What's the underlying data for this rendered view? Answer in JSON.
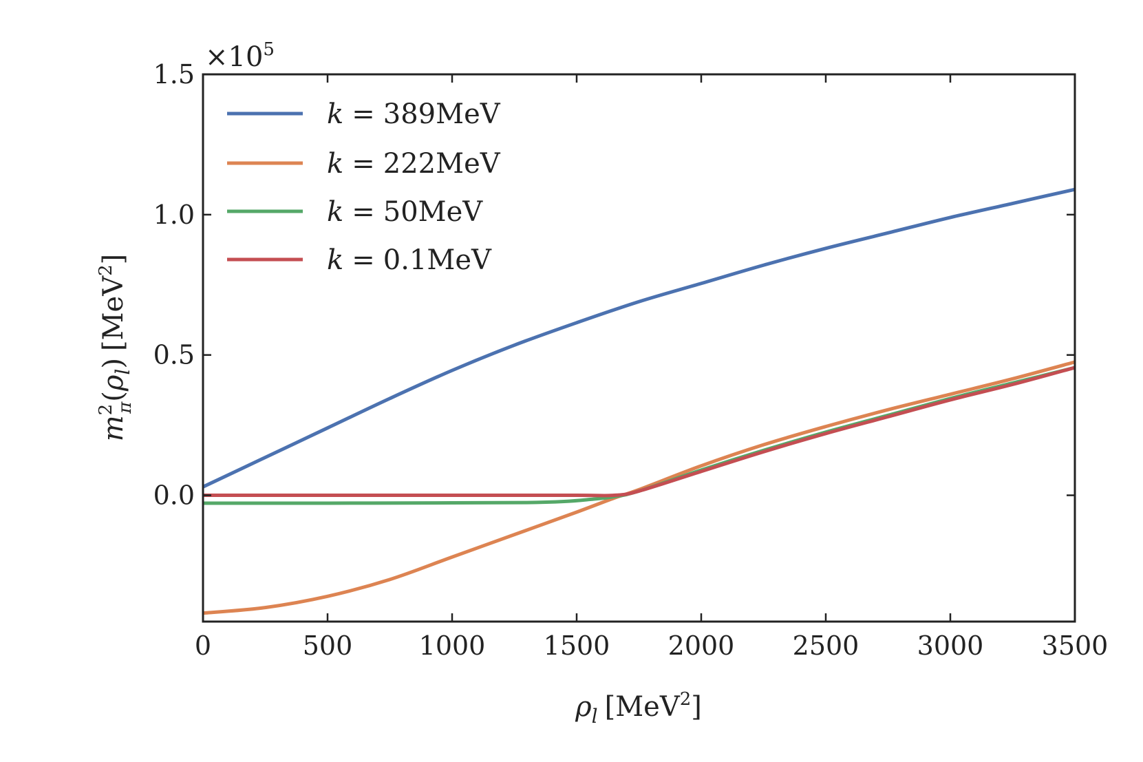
{
  "chart_data": {
    "type": "line",
    "title": "",
    "xlabel": {
      "symbol": "ρ",
      "subscript": "l",
      "unit": "[MeV",
      "unit_sup": "2",
      "unit_close": "]"
    },
    "ylabel": {
      "m": "m",
      "m_sup": "2",
      "m_sub": "π",
      "open": "(",
      "rho": "ρ",
      "rho_sub": "l",
      "close": ")",
      "unit": "[MeV",
      "unit_sup": "2",
      "unit_close": "]"
    },
    "y_multiplier": {
      "base": "×10",
      "exponent": "5"
    },
    "xlim": [
      0,
      3500
    ],
    "ylim": [
      -0.45,
      1.5
    ],
    "xticks": [
      0,
      500,
      1000,
      1500,
      2000,
      2500,
      3000,
      3500
    ],
    "xtick_labels": [
      "0",
      "500",
      "1000",
      "1500",
      "2000",
      "2500",
      "3000",
      "3500"
    ],
    "yticks": [
      0.0,
      0.5,
      1.0,
      1.5
    ],
    "ytick_labels": [
      "0.0",
      "0.5",
      "1.0",
      "1.5"
    ],
    "grid": false,
    "legend_position": "top-left",
    "series": [
      {
        "name": "k = 389MeV",
        "legend_var": "k",
        "legend_eq": "=",
        "legend_value": "389MeV",
        "color": "#4c72b0",
        "x": [
          0,
          250,
          500,
          750,
          1000,
          1250,
          1500,
          1750,
          2000,
          2250,
          2500,
          2750,
          3000,
          3250,
          3500
        ],
        "y": [
          0.03,
          0.135,
          0.24,
          0.345,
          0.445,
          0.535,
          0.615,
          0.69,
          0.755,
          0.82,
          0.88,
          0.935,
          0.99,
          1.04,
          1.09
        ]
      },
      {
        "name": "k = 222MeV",
        "legend_var": "k",
        "legend_eq": "=",
        "legend_value": "222MeV",
        "color": "#dd8452",
        "x": [
          0,
          250,
          500,
          750,
          1000,
          1250,
          1500,
          1650,
          1750,
          2000,
          2250,
          2500,
          2750,
          3000,
          3250,
          3500
        ],
        "y": [
          -0.42,
          -0.4,
          -0.36,
          -0.3,
          -0.22,
          -0.14,
          -0.06,
          -0.01,
          0.02,
          0.105,
          0.18,
          0.245,
          0.305,
          0.36,
          0.415,
          0.475
        ]
      },
      {
        "name": "k = 50MeV",
        "legend_var": "k",
        "legend_eq": "=",
        "legend_value": "50MeV",
        "color": "#55a868",
        "x": [
          0,
          500,
          1000,
          1300,
          1450,
          1550,
          1650,
          1750,
          2000,
          2250,
          2500,
          2750,
          3000,
          3250,
          3500
        ],
        "y": [
          -0.028,
          -0.028,
          -0.027,
          -0.026,
          -0.022,
          -0.015,
          -0.005,
          0.015,
          0.09,
          0.16,
          0.225,
          0.285,
          0.345,
          0.4,
          0.455
        ]
      },
      {
        "name": "k = 0.1MeV",
        "legend_var": "k",
        "legend_eq": "=",
        "legend_value": "0.1MeV",
        "color": "#c44e52",
        "x": [
          0,
          500,
          1000,
          1500,
          1650,
          1750,
          2000,
          2250,
          2500,
          2750,
          3000,
          3250,
          3500
        ],
        "y": [
          0.0,
          0.0,
          0.0,
          0.0,
          0.0,
          0.015,
          0.085,
          0.155,
          0.22,
          0.28,
          0.34,
          0.395,
          0.455
        ]
      }
    ]
  }
}
